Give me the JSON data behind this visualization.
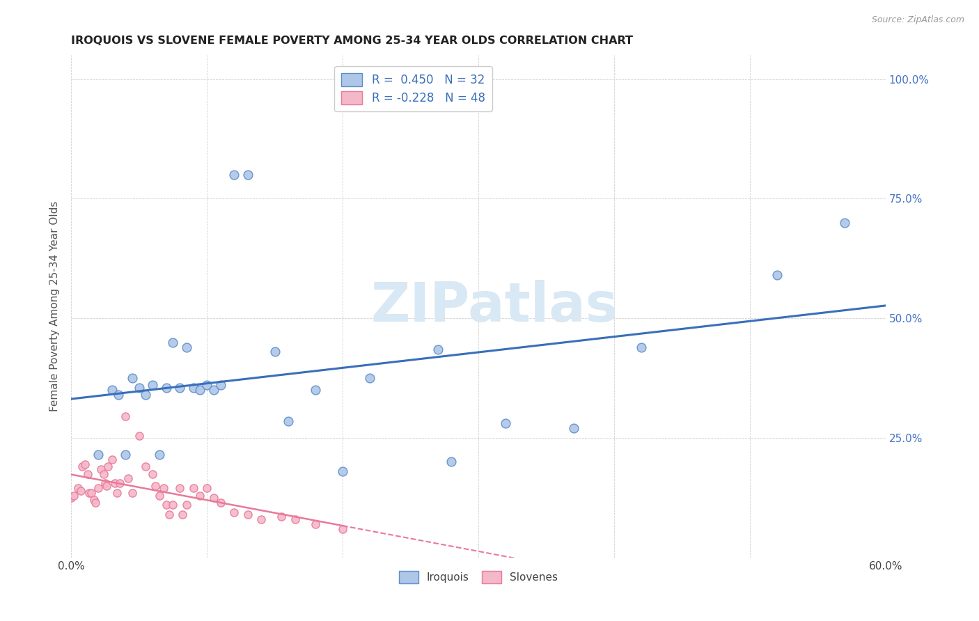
{
  "title": "IROQUOIS VS SLOVENE FEMALE POVERTY AMONG 25-34 YEAR OLDS CORRELATION CHART",
  "source": "Source: ZipAtlas.com",
  "ylabel": "Female Poverty Among 25-34 Year Olds",
  "xlim": [
    0.0,
    0.6
  ],
  "ylim": [
    0.0,
    1.05
  ],
  "x_tick_positions": [
    0.0,
    0.1,
    0.2,
    0.3,
    0.4,
    0.5,
    0.6
  ],
  "x_tick_labels": [
    "0.0%",
    "",
    "",
    "",
    "",
    "",
    "60.0%"
  ],
  "y_tick_positions": [
    0.0,
    0.25,
    0.5,
    0.75,
    1.0
  ],
  "y_tick_labels": [
    "",
    "25.0%",
    "50.0%",
    "75.0%",
    "100.0%"
  ],
  "iroquois_color": "#aec6e8",
  "iroquois_edge_color": "#5b8fc9",
  "slovenes_color": "#f4b8c8",
  "slovenes_edge_color": "#e8799a",
  "iroquois_line_color": "#3a6fba",
  "slovenes_line_color": "#e8799a",
  "watermark_text": "ZIPatlas",
  "watermark_color": "#d8e8f4",
  "iroquois_x": [
    0.02,
    0.03,
    0.035,
    0.04,
    0.045,
    0.05,
    0.055,
    0.06,
    0.065,
    0.07,
    0.075,
    0.08,
    0.085,
    0.09,
    0.095,
    0.1,
    0.105,
    0.11,
    0.12,
    0.13,
    0.15,
    0.16,
    0.18,
    0.2,
    0.22,
    0.27,
    0.28,
    0.32,
    0.37,
    0.42,
    0.52,
    0.57
  ],
  "iroquois_y": [
    0.215,
    0.35,
    0.34,
    0.215,
    0.375,
    0.355,
    0.34,
    0.36,
    0.215,
    0.355,
    0.45,
    0.355,
    0.44,
    0.355,
    0.35,
    0.36,
    0.35,
    0.36,
    0.8,
    0.8,
    0.43,
    0.285,
    0.35,
    0.18,
    0.375,
    0.435,
    0.2,
    0.28,
    0.27,
    0.44,
    0.59,
    0.7
  ],
  "slovenes_x": [
    0.0,
    0.002,
    0.005,
    0.007,
    0.008,
    0.01,
    0.012,
    0.013,
    0.015,
    0.017,
    0.018,
    0.02,
    0.022,
    0.024,
    0.025,
    0.026,
    0.027,
    0.03,
    0.032,
    0.034,
    0.036,
    0.04,
    0.042,
    0.045,
    0.05,
    0.055,
    0.06,
    0.062,
    0.065,
    0.068,
    0.07,
    0.072,
    0.075,
    0.08,
    0.082,
    0.085,
    0.09,
    0.095,
    0.1,
    0.105,
    0.11,
    0.12,
    0.13,
    0.14,
    0.155,
    0.165,
    0.18,
    0.2
  ],
  "slovenes_y": [
    0.125,
    0.13,
    0.145,
    0.14,
    0.19,
    0.195,
    0.175,
    0.135,
    0.135,
    0.12,
    0.115,
    0.145,
    0.185,
    0.175,
    0.155,
    0.15,
    0.19,
    0.205,
    0.155,
    0.135,
    0.155,
    0.295,
    0.165,
    0.135,
    0.255,
    0.19,
    0.175,
    0.15,
    0.13,
    0.145,
    0.11,
    0.09,
    0.11,
    0.145,
    0.09,
    0.11,
    0.145,
    0.13,
    0.145,
    0.125,
    0.115,
    0.095,
    0.09,
    0.08,
    0.085,
    0.08,
    0.07,
    0.06
  ]
}
